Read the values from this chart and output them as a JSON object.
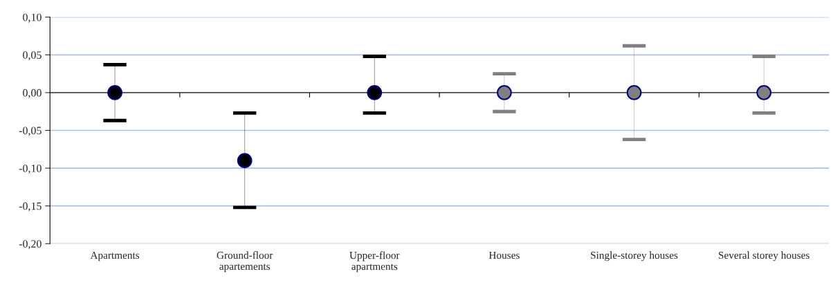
{
  "chart_data": {
    "type": "scatter",
    "categories": [
      "Apartments",
      "Ground-floor\napartements",
      "Upper-floor\napartments",
      "Houses",
      "Single-storey houses",
      "Several storey houses"
    ],
    "values": [
      0,
      -0.09,
      0,
      0,
      0,
      0
    ],
    "colors": [
      "#000000",
      "#000000",
      "#000000",
      "#808080",
      "#808080",
      "#808080"
    ],
    "errors": [
      0.037,
      [
        -0.152,
        -0.027
      ],
      [
        -0.027,
        0.048
      ],
      0.025,
      0.062,
      [
        -0.027,
        0.048
      ]
    ],
    "ylim": [
      -0.2,
      0.1
    ],
    "yticks": [
      {
        "value": -0.2,
        "label": "-0,20"
      },
      {
        "value": -0.15,
        "label": "-0,15"
      },
      {
        "value": -0.1,
        "label": "-0,10"
      },
      {
        "value": -0.05,
        "label": "-0,05"
      },
      {
        "value": 0,
        "label": "0,00"
      },
      {
        "value": 0.05,
        "label": "0,05"
      },
      {
        "value": 0.1,
        "label": "0,10"
      }
    ],
    "grid": "y",
    "marker": "circle"
  }
}
